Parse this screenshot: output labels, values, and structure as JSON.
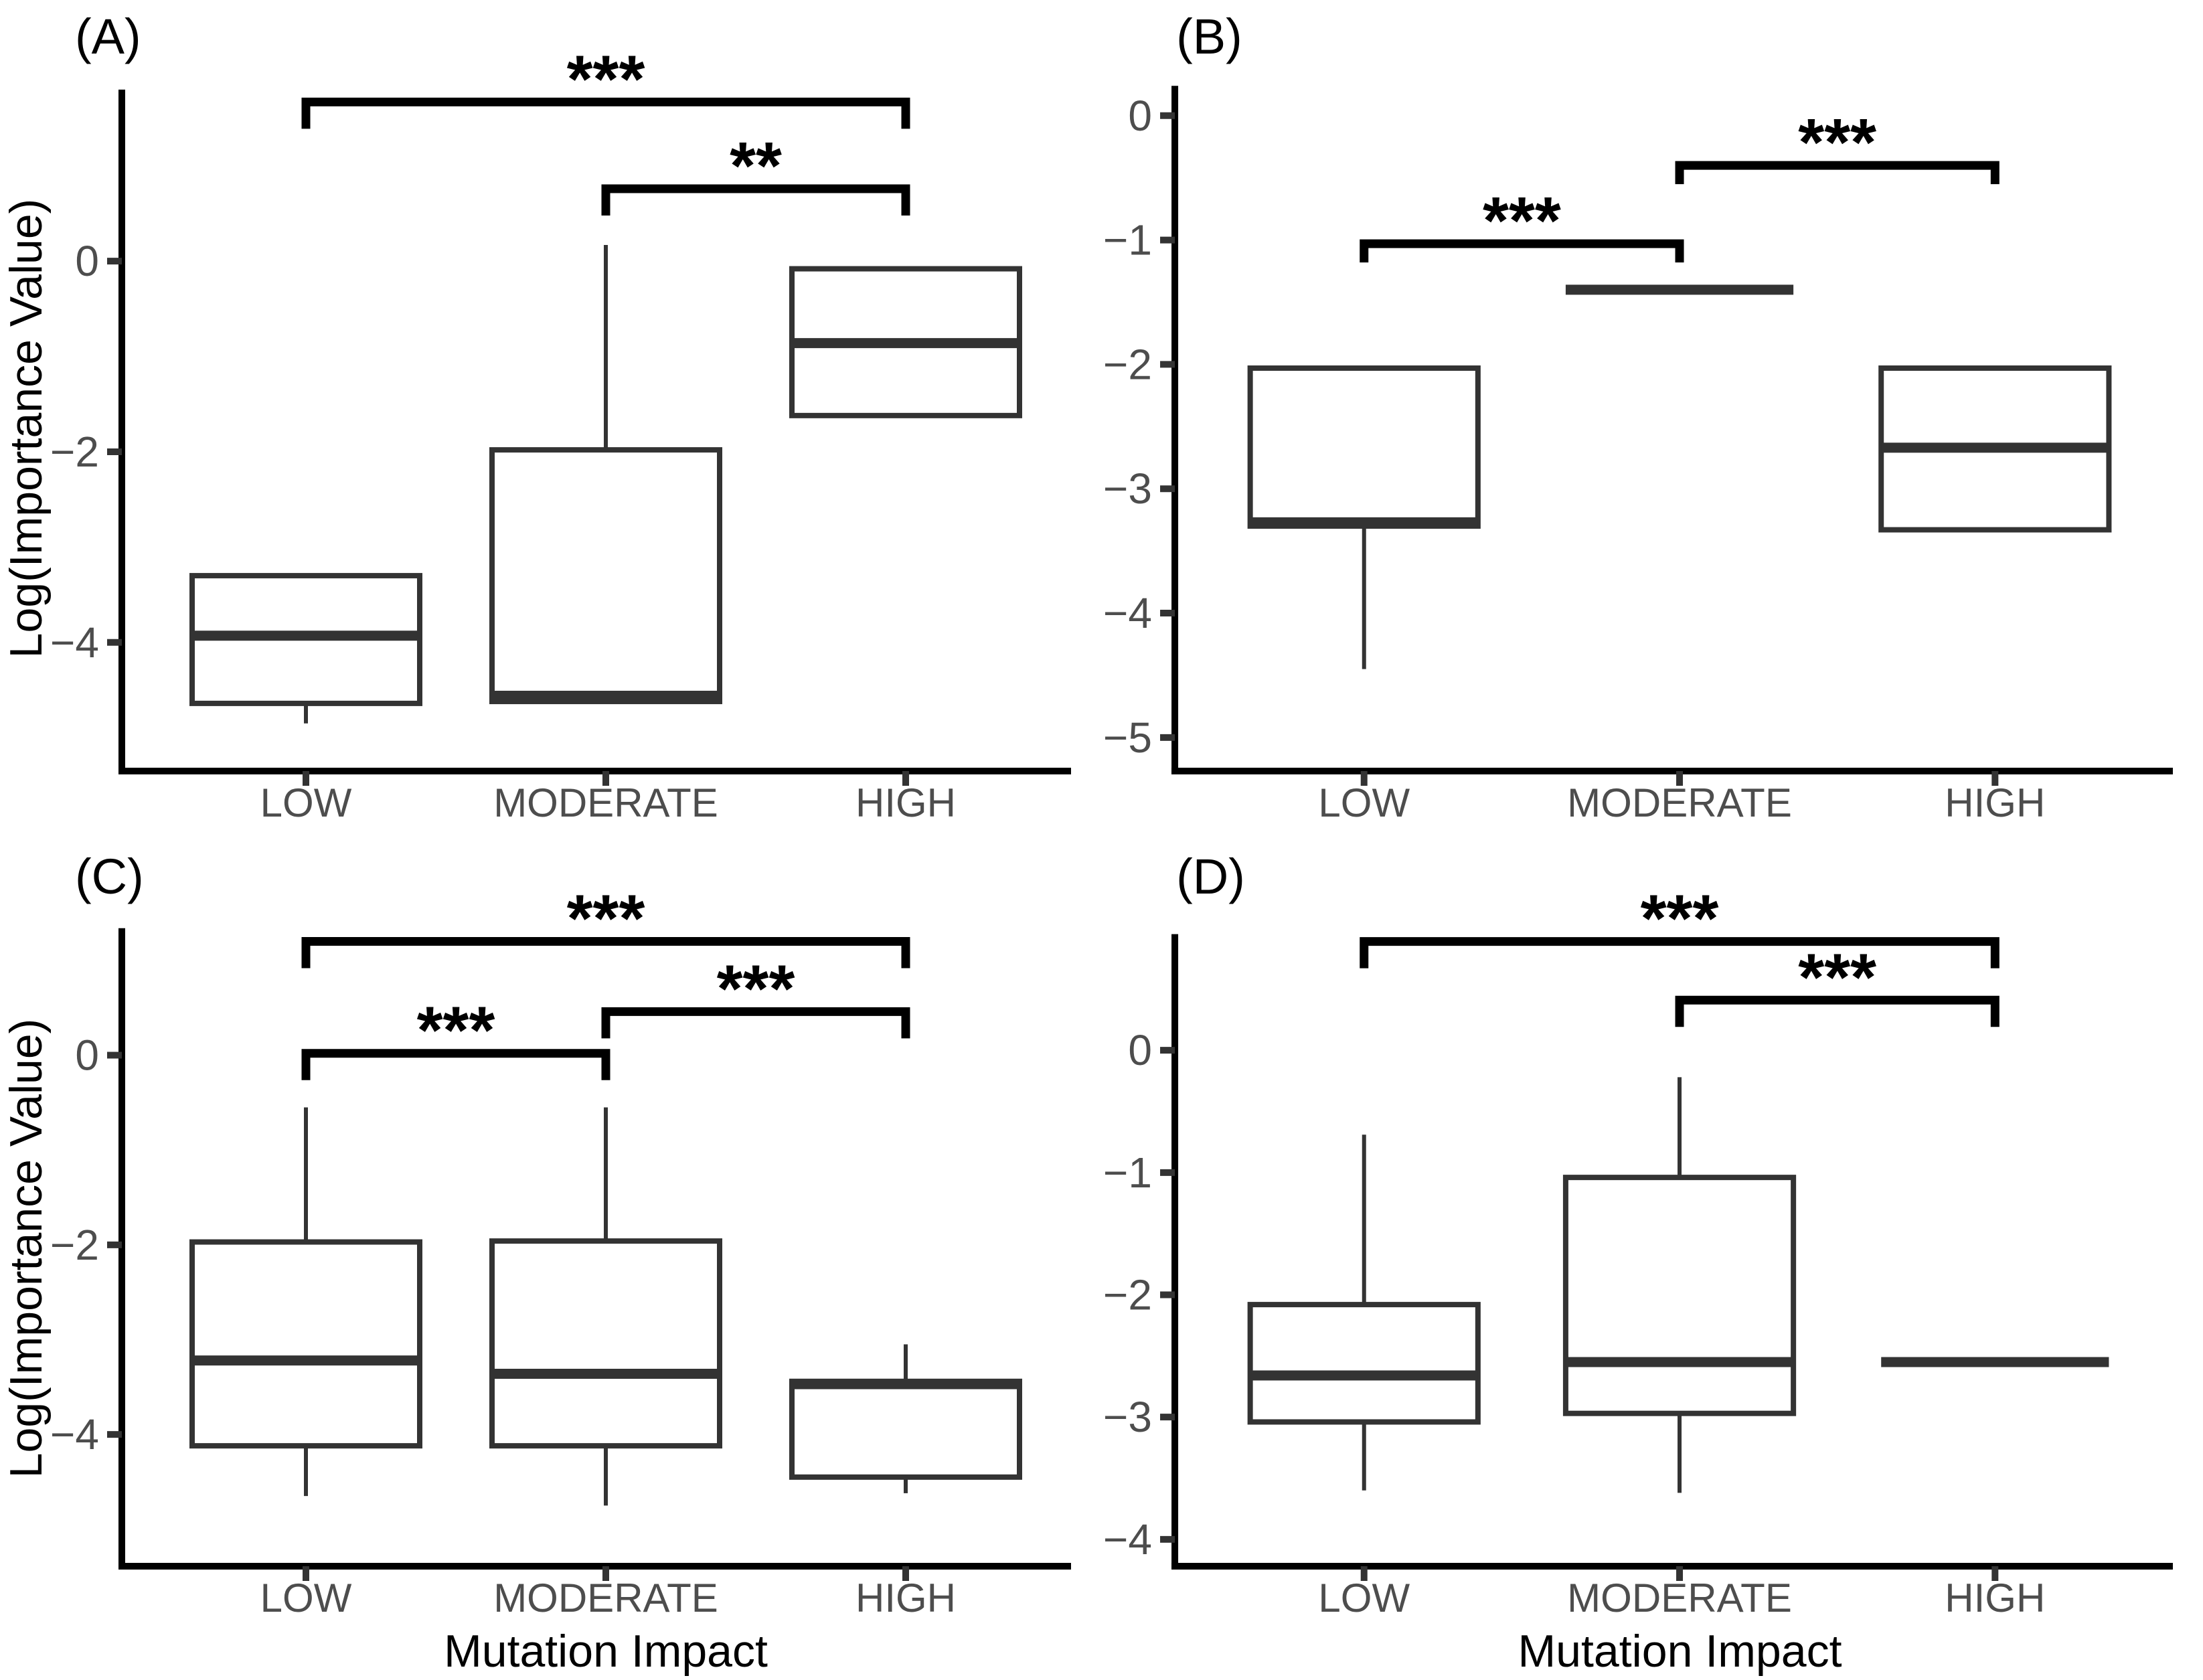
{
  "figure": {
    "ylabel": "Log(Importance Value)",
    "xlabel": "Mutation Impact",
    "categories": [
      "LOW",
      "MODERATE",
      "HIGH"
    ]
  },
  "colors": {
    "background": "#ffffff",
    "axis_line": "#000000",
    "tick_mark": "#333333",
    "tick_label": "#4d4d4d",
    "category_label": "#4d4d4d",
    "box_stroke": "#333333",
    "box_fill": "#ffffff",
    "median_line": "#333333",
    "whisker": "#333333",
    "bracket": "#000000",
    "sig_text": "#000000",
    "title_text": "#000000"
  },
  "chart_data": [
    {
      "type": "boxplot",
      "panel_label": "(A)",
      "ylabel": "Log(Importance Value)",
      "xlabel": "",
      "categories": [
        "LOW",
        "MODERATE",
        "HIGH"
      ],
      "yticks": [
        0,
        -2,
        -4
      ],
      "ytick_labels": [
        "0",
        "−2",
        "−4"
      ],
      "ylim": [
        -5.35,
        2.74
      ],
      "axis_top": 1.8,
      "grid": false,
      "boxes": [
        {
          "category": "LOW",
          "min": -4.85,
          "q1": -4.64,
          "median": -3.93,
          "q3": -3.3,
          "max": -3.3
        },
        {
          "category": "MODERATE",
          "min": -4.62,
          "q1": -4.62,
          "median": -4.56,
          "q3": -1.98,
          "max": 0.17
        },
        {
          "category": "HIGH",
          "min": -1.62,
          "q1": -1.62,
          "median": -0.86,
          "q3": -0.08,
          "max": -0.08
        }
      ],
      "significance": [
        {
          "group1": "LOW",
          "group2": "HIGH",
          "label": "***",
          "bar_y": 1.67
        },
        {
          "group1": "MODERATE",
          "group2": "HIGH",
          "label": "**",
          "bar_y": 0.76
        }
      ]
    },
    {
      "type": "boxplot",
      "panel_label": "(B)",
      "ylabel": "",
      "xlabel": "",
      "categories": [
        "LOW",
        "MODERATE",
        "HIGH"
      ],
      "yticks": [
        0,
        -1,
        -2,
        -3,
        -4,
        -5
      ],
      "ytick_labels": [
        "0",
        "−1",
        "−2",
        "−3",
        "−4",
        "−5"
      ],
      "ylim": [
        -5.27,
        0.93
      ],
      "axis_top": 0.24,
      "grid": false,
      "boxes": [
        {
          "category": "LOW",
          "min": -4.45,
          "q1": -3.3,
          "median": -3.27,
          "q3": -2.03,
          "max": -2.03
        },
        {
          "category": "MODERATE",
          "min": -1.4,
          "q1": -1.4,
          "median": -1.4,
          "q3": -1.4,
          "max": -1.4
        },
        {
          "category": "HIGH",
          "min": -3.33,
          "q1": -3.33,
          "median": -2.67,
          "q3": -2.03,
          "max": -2.03
        }
      ],
      "significance": [
        {
          "group1": "LOW",
          "group2": "MODERATE",
          "label": "***",
          "bar_y": -1.03
        },
        {
          "group1": "MODERATE",
          "group2": "HIGH",
          "label": "***",
          "bar_y": -0.4
        }
      ]
    },
    {
      "type": "boxplot",
      "panel_label": "(C)",
      "ylabel": "Log(Importance Value)",
      "xlabel": "Mutation Impact",
      "categories": [
        "LOW",
        "MODERATE",
        "HIGH"
      ],
      "yticks": [
        0,
        -2,
        -4
      ],
      "ytick_labels": [
        "0",
        "−2",
        "−4"
      ],
      "ylim": [
        -5.39,
        2.27
      ],
      "axis_top": 1.34,
      "grid": false,
      "boxes": [
        {
          "category": "LOW",
          "min": -4.65,
          "q1": -4.12,
          "median": -3.22,
          "q3": -1.97,
          "max": -0.55
        },
        {
          "category": "MODERATE",
          "min": -4.75,
          "q1": -4.12,
          "median": -3.36,
          "q3": -1.96,
          "max": -0.55
        },
        {
          "category": "HIGH",
          "min": -4.62,
          "q1": -4.45,
          "median": -3.47,
          "q3": -3.44,
          "max": -3.05
        }
      ],
      "significance": [
        {
          "group1": "LOW",
          "group2": "MODERATE",
          "label": "***",
          "bar_y": 0.02
        },
        {
          "group1": "MODERATE",
          "group2": "HIGH",
          "label": "***",
          "bar_y": 0.46
        },
        {
          "group1": "LOW",
          "group2": "HIGH",
          "label": "***",
          "bar_y": 1.2
        }
      ]
    },
    {
      "type": "boxplot",
      "panel_label": "(D)",
      "ylabel": "",
      "xlabel": "Mutation Impact",
      "categories": [
        "LOW",
        "MODERATE",
        "HIGH"
      ],
      "yticks": [
        0,
        -1,
        -2,
        -3,
        -4
      ],
      "ytick_labels": [
        "0",
        "−1",
        "−2",
        "−3",
        "−4"
      ],
      "ylim": [
        -4.22,
        1.72
      ],
      "axis_top": 0.95,
      "grid": false,
      "boxes": [
        {
          "category": "LOW",
          "min": -3.6,
          "q1": -3.04,
          "median": -2.66,
          "q3": -2.08,
          "max": -0.69
        },
        {
          "category": "MODERATE",
          "min": -3.62,
          "q1": -2.97,
          "median": -2.55,
          "q3": -1.04,
          "max": -0.22
        },
        {
          "category": "HIGH",
          "min": -2.55,
          "q1": -2.55,
          "median": -2.55,
          "q3": -2.55,
          "max": -2.55
        }
      ],
      "significance": [
        {
          "group1": "MODERATE",
          "group2": "HIGH",
          "label": "***",
          "bar_y": 0.41
        },
        {
          "group1": "LOW",
          "group2": "HIGH",
          "label": "***",
          "bar_y": 0.89
        }
      ]
    }
  ]
}
